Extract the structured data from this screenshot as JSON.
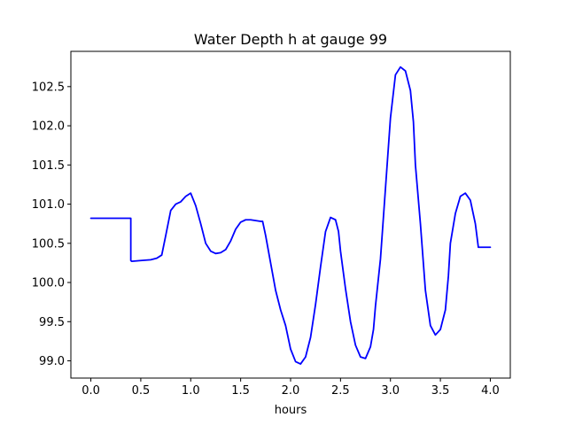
{
  "chart_data": {
    "type": "line",
    "title": "Water Depth h at gauge 99",
    "xlabel": "hours",
    "ylabel": "",
    "xlim": [
      -0.2,
      4.2
    ],
    "ylim": [
      98.78,
      102.95
    ],
    "xticks": [
      0.0,
      0.5,
      1.0,
      1.5,
      2.0,
      2.5,
      3.0,
      3.5,
      4.0
    ],
    "xtick_labels": [
      "0.0",
      "0.5",
      "1.0",
      "1.5",
      "2.0",
      "2.5",
      "3.0",
      "3.5",
      "4.0"
    ],
    "yticks": [
      99.0,
      99.5,
      100.0,
      100.5,
      101.0,
      101.5,
      102.0,
      102.5
    ],
    "ytick_labels": [
      "99.0",
      "99.5",
      "100.0",
      "100.5",
      "101.0",
      "101.5",
      "102.0",
      "102.5"
    ],
    "grid": false,
    "series": [
      {
        "color": "#0000ff",
        "x": [
          0.0,
          0.4,
          0.4,
          0.41,
          0.5,
          0.6,
          0.66,
          0.71,
          0.75,
          0.8,
          0.85,
          0.9,
          0.95,
          1.0,
          1.05,
          1.1,
          1.15,
          1.2,
          1.25,
          1.3,
          1.35,
          1.4,
          1.45,
          1.5,
          1.55,
          1.6,
          1.65,
          1.7,
          1.72,
          1.75,
          1.8,
          1.85,
          1.9,
          1.95,
          2.0,
          2.05,
          2.1,
          2.15,
          2.2,
          2.25,
          2.3,
          2.35,
          2.4,
          2.45,
          2.48,
          2.5,
          2.55,
          2.6,
          2.65,
          2.7,
          2.75,
          2.8,
          2.83,
          2.85,
          2.9,
          2.95,
          3.0,
          3.05,
          3.1,
          3.15,
          3.2,
          3.23,
          3.25,
          3.3,
          3.35,
          3.4,
          3.45,
          3.5,
          3.55,
          3.58,
          3.6,
          3.65,
          3.7,
          3.75,
          3.8,
          3.85,
          3.88,
          3.9,
          3.95,
          4.0
        ],
        "y": [
          100.82,
          100.82,
          100.28,
          100.27,
          100.28,
          100.29,
          100.31,
          100.35,
          100.6,
          100.92,
          101.0,
          101.03,
          101.1,
          101.14,
          100.98,
          100.75,
          100.5,
          100.4,
          100.37,
          100.38,
          100.42,
          100.53,
          100.68,
          100.77,
          100.8,
          100.8,
          100.79,
          100.78,
          100.78,
          100.6,
          100.25,
          99.9,
          99.65,
          99.45,
          99.15,
          98.99,
          98.96,
          99.05,
          99.3,
          99.72,
          100.2,
          100.65,
          100.83,
          100.8,
          100.65,
          100.4,
          99.92,
          99.5,
          99.2,
          99.05,
          99.03,
          99.18,
          99.4,
          99.7,
          100.3,
          101.2,
          102.1,
          102.65,
          102.75,
          102.7,
          102.45,
          102.05,
          101.5,
          100.75,
          99.9,
          99.45,
          99.33,
          99.4,
          99.65,
          100.08,
          100.5,
          100.88,
          101.1,
          101.14,
          101.05,
          100.75,
          100.45,
          100.45,
          100.45,
          100.45
        ]
      }
    ]
  }
}
